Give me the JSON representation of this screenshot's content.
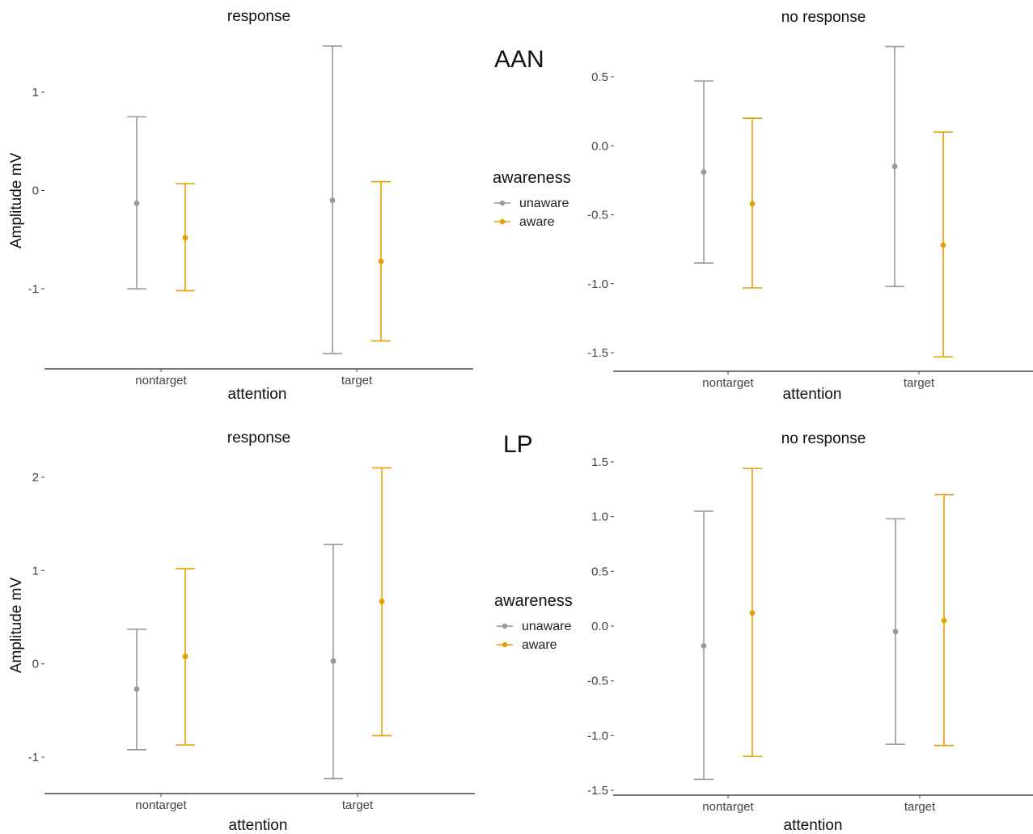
{
  "colors": {
    "unaware": "#999999",
    "aware": "#E69F00",
    "axis": "#222222"
  },
  "sections": [
    {
      "label": "AAN",
      "legend": {
        "title": "awareness",
        "entries": [
          "unaware",
          "aware"
        ]
      }
    },
    {
      "label": "LP",
      "legend": {
        "title": "awareness",
        "entries": [
          "unaware",
          "aware"
        ]
      }
    }
  ],
  "chart_data": [
    {
      "type": "errorbar",
      "section": "AAN",
      "title": "response",
      "xlabel": "attention",
      "ylabel": "Amplitude mV",
      "categories": [
        "nontarget",
        "target"
      ],
      "yticks": [
        1,
        0,
        -1
      ],
      "ylim": [
        -1.8,
        1.5
      ],
      "series": [
        {
          "name": "unaware",
          "points": [
            {
              "x": "nontarget",
              "y": -0.13,
              "low": -1.0,
              "high": 0.75
            },
            {
              "x": "target",
              "y": -0.1,
              "low": -1.66,
              "high": 1.47
            }
          ]
        },
        {
          "name": "aware",
          "points": [
            {
              "x": "nontarget",
              "y": -0.48,
              "low": -1.02,
              "high": 0.07
            },
            {
              "x": "target",
              "y": -0.72,
              "low": -1.53,
              "high": 0.09
            }
          ]
        }
      ]
    },
    {
      "type": "errorbar",
      "section": "AAN",
      "title": "no response",
      "xlabel": "attention",
      "ylabel": "",
      "categories": [
        "nontarget",
        "target"
      ],
      "yticks": [
        0.5,
        0.0,
        -0.5,
        -1.0,
        -1.5
      ],
      "ylim": [
        -1.65,
        0.75
      ],
      "series": [
        {
          "name": "unaware",
          "points": [
            {
              "x": "nontarget",
              "y": -0.19,
              "low": -0.85,
              "high": 0.47
            },
            {
              "x": "target",
              "y": -0.15,
              "low": -1.02,
              "high": 0.72
            }
          ]
        },
        {
          "name": "aware",
          "points": [
            {
              "x": "nontarget",
              "y": -0.42,
              "low": -1.03,
              "high": 0.2
            },
            {
              "x": "target",
              "y": -0.72,
              "low": -1.53,
              "high": 0.1
            }
          ]
        }
      ]
    },
    {
      "type": "errorbar",
      "section": "LP",
      "title": "response",
      "xlabel": "attention",
      "ylabel": "Amplitude mV",
      "categories": [
        "nontarget",
        "target"
      ],
      "yticks": [
        2,
        1,
        0,
        -1
      ],
      "ylim": [
        -1.4,
        2.15
      ],
      "series": [
        {
          "name": "unaware",
          "points": [
            {
              "x": "nontarget",
              "y": -0.27,
              "low": -0.92,
              "high": 0.37
            },
            {
              "x": "target",
              "y": 0.03,
              "low": -1.23,
              "high": 1.28
            }
          ]
        },
        {
          "name": "aware",
          "points": [
            {
              "x": "nontarget",
              "y": 0.08,
              "low": -0.87,
              "high": 1.02
            },
            {
              "x": "target",
              "y": 0.67,
              "low": -0.77,
              "high": 2.1
            }
          ]
        }
      ]
    },
    {
      "type": "errorbar",
      "section": "LP",
      "title": "no response",
      "xlabel": "attention",
      "ylabel": "",
      "categories": [
        "nontarget",
        "target"
      ],
      "yticks": [
        1.5,
        1.0,
        0.5,
        0.0,
        -0.5,
        -1.0,
        -1.5
      ],
      "ylim": [
        -1.55,
        1.55
      ],
      "series": [
        {
          "name": "unaware",
          "points": [
            {
              "x": "nontarget",
              "y": -0.18,
              "low": -1.4,
              "high": 1.05
            },
            {
              "x": "target",
              "y": -0.05,
              "low": -1.08,
              "high": 0.98
            }
          ]
        },
        {
          "name": "aware",
          "points": [
            {
              "x": "nontarget",
              "y": 0.12,
              "low": -1.19,
              "high": 1.44
            },
            {
              "x": "target",
              "y": 0.05,
              "low": -1.09,
              "high": 1.2
            }
          ]
        }
      ]
    }
  ]
}
